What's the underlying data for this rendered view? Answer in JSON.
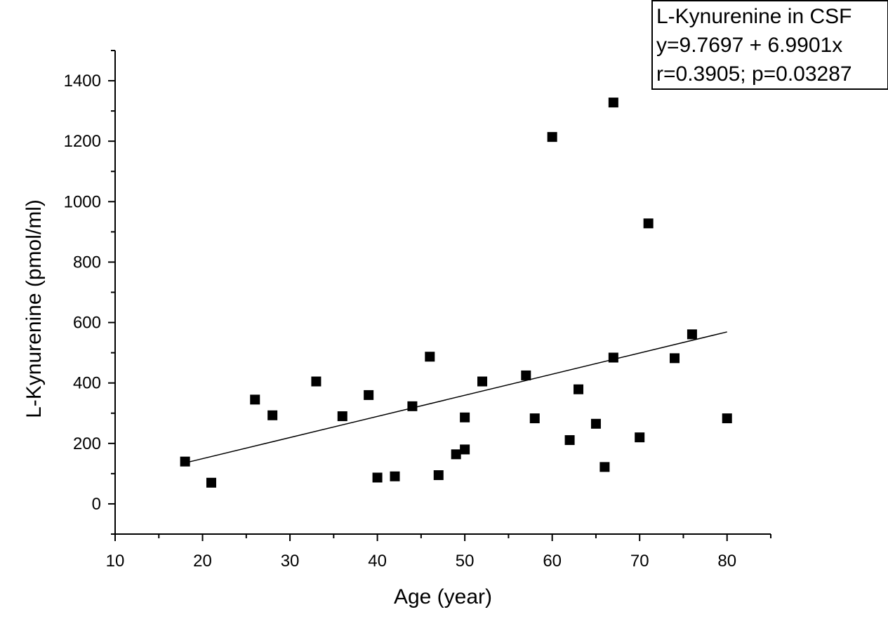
{
  "chart_data": {
    "type": "scatter",
    "title": "",
    "xlabel": "Age (year)",
    "ylabel": "L-Kynurenine (pmol/ml)",
    "xlim": [
      10,
      85
    ],
    "ylim": [
      -100,
      1500
    ],
    "x_ticks": [
      10,
      20,
      30,
      40,
      50,
      60,
      70,
      80
    ],
    "y_ticks": [
      0,
      200,
      400,
      600,
      800,
      1000,
      1200,
      1400
    ],
    "grid": false,
    "legend_placement": "top-right",
    "points": [
      {
        "x": 18,
        "y": 140
      },
      {
        "x": 21,
        "y": 70
      },
      {
        "x": 26,
        "y": 345
      },
      {
        "x": 28,
        "y": 293
      },
      {
        "x": 33,
        "y": 405
      },
      {
        "x": 36,
        "y": 290
      },
      {
        "x": 39,
        "y": 360
      },
      {
        "x": 40,
        "y": 87
      },
      {
        "x": 42,
        "y": 91
      },
      {
        "x": 44,
        "y": 323
      },
      {
        "x": 46,
        "y": 487
      },
      {
        "x": 47,
        "y": 95
      },
      {
        "x": 49,
        "y": 164
      },
      {
        "x": 50,
        "y": 180
      },
      {
        "x": 50,
        "y": 286
      },
      {
        "x": 52,
        "y": 405
      },
      {
        "x": 57,
        "y": 425
      },
      {
        "x": 58,
        "y": 283
      },
      {
        "x": 60,
        "y": 1214
      },
      {
        "x": 62,
        "y": 211
      },
      {
        "x": 63,
        "y": 379
      },
      {
        "x": 65,
        "y": 265
      },
      {
        "x": 66,
        "y": 122
      },
      {
        "x": 67,
        "y": 484
      },
      {
        "x": 67,
        "y": 1328
      },
      {
        "x": 70,
        "y": 220
      },
      {
        "x": 71,
        "y": 928
      },
      {
        "x": 74,
        "y": 482
      },
      {
        "x": 76,
        "y": 561
      },
      {
        "x": 80,
        "y": 283
      }
    ],
    "fit_line": {
      "intercept": 9.7697,
      "slope": 6.9901,
      "x_range": [
        18,
        80
      ]
    },
    "annotation": {
      "lines": [
        "L-Kynurenine in CSF",
        "y=9.7697 + 6.9901x",
        "r=0.3905; p=0.03287"
      ]
    },
    "colors": {
      "marker": "#000000",
      "line": "#000000",
      "axis": "#000000"
    }
  }
}
